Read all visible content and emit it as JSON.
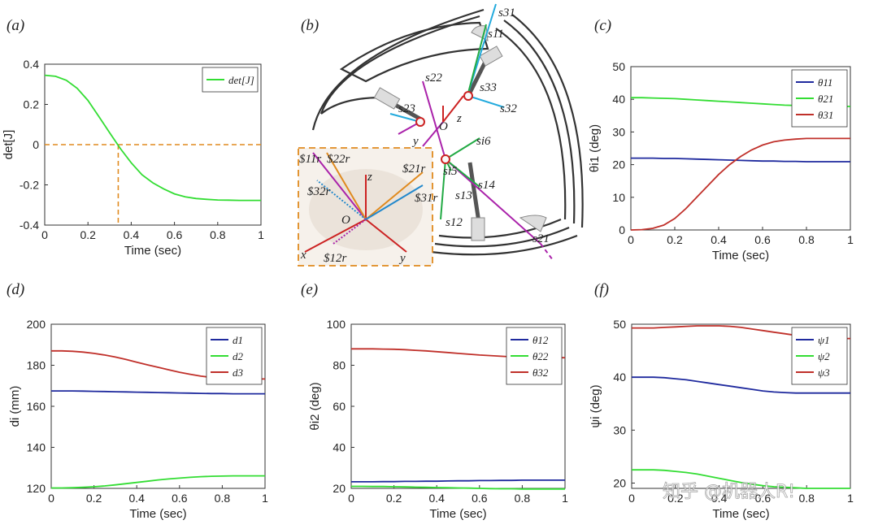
{
  "panel_labels": [
    "(a)",
    "(b)",
    "(c)",
    "(d)",
    "(e)",
    "(f)"
  ],
  "watermark": "知乎 @机器人R!",
  "diagram": {
    "labels": [
      "s31",
      "s11",
      "s22",
      "s33",
      "s32",
      "s23",
      "O",
      "z",
      "y",
      "si6",
      "si5",
      "s14",
      "s13",
      "s12",
      "s21"
    ],
    "inset_labels": [
      "$11r",
      "$22r",
      "$21r",
      "$31r",
      "$32r",
      "$12r",
      "z",
      "O",
      "x",
      "y"
    ]
  },
  "chart_data": [
    {
      "id": "a",
      "type": "line",
      "xlabel": "Time (sec)",
      "ylabel": "det[J]",
      "xlim": [
        0,
        1
      ],
      "ylim": [
        -0.4,
        0.4
      ],
      "xticks": [
        0,
        0.2,
        0.4,
        0.6,
        0.8,
        1
      ],
      "xtick_labels": [
        "0",
        "0.2",
        "0.4",
        "0.6",
        "0.8",
        "1"
      ],
      "yticks": [
        -0.4,
        -0.2,
        0,
        0.2,
        0.4
      ],
      "ytick_labels": [
        "-0.4",
        "-0.2",
        "0",
        "0.2",
        "0.4"
      ],
      "legend_position": "top-right",
      "x": [
        0,
        0.05,
        0.1,
        0.15,
        0.2,
        0.25,
        0.3,
        0.35,
        0.4,
        0.45,
        0.5,
        0.55,
        0.6,
        0.65,
        0.7,
        0.75,
        0.8,
        0.85,
        0.9,
        0.95,
        1
      ],
      "series": [
        {
          "name": "det[J]",
          "color": "#33dd33",
          "values": [
            0.345,
            0.34,
            0.32,
            0.28,
            0.22,
            0.14,
            0.06,
            -0.02,
            -0.09,
            -0.15,
            -0.19,
            -0.22,
            -0.245,
            -0.26,
            -0.268,
            -0.272,
            -0.275,
            -0.276,
            -0.277,
            -0.277,
            -0.277
          ]
        }
      ],
      "reference_lines": {
        "y0": 0,
        "x_cross": 0.34,
        "color": "#e08a1e"
      }
    },
    {
      "id": "c",
      "type": "line",
      "xlabel": "Time (sec)",
      "ylabel": "θi1 (deg)",
      "xlim": [
        0,
        1
      ],
      "ylim": [
        0,
        50
      ],
      "xticks": [
        0,
        0.2,
        0.4,
        0.6,
        0.8,
        1
      ],
      "xtick_labels": [
        "0",
        "0.2",
        "0.4",
        "0.6",
        "0.8",
        "1"
      ],
      "yticks": [
        0,
        10,
        20,
        30,
        40,
        50
      ],
      "ytick_labels": [
        "0",
        "10",
        "20",
        "30",
        "40",
        "50"
      ],
      "legend_position": "top-right",
      "x": [
        0,
        0.05,
        0.1,
        0.15,
        0.2,
        0.25,
        0.3,
        0.35,
        0.4,
        0.45,
        0.5,
        0.55,
        0.6,
        0.65,
        0.7,
        0.75,
        0.8,
        0.85,
        0.9,
        0.95,
        1
      ],
      "series": [
        {
          "name": "θ11",
          "color": "#1f2a9e",
          "values": [
            22,
            22,
            22,
            21.9,
            21.9,
            21.8,
            21.7,
            21.6,
            21.5,
            21.4,
            21.3,
            21.2,
            21.1,
            21.1,
            21,
            21,
            20.9,
            20.9,
            20.9,
            20.9,
            20.9
          ]
        },
        {
          "name": "θ21",
          "color": "#33dd33",
          "values": [
            40.5,
            40.5,
            40.4,
            40.3,
            40.2,
            40,
            39.8,
            39.6,
            39.4,
            39.2,
            39,
            38.8,
            38.6,
            38.4,
            38.2,
            38.1,
            38,
            37.9,
            37.8,
            37.8,
            37.8
          ]
        },
        {
          "name": "θ31",
          "color": "#c0302a",
          "values": [
            0,
            0.1,
            0.5,
            1.5,
            3.5,
            6.5,
            10,
            13.5,
            17,
            20,
            22.5,
            24.5,
            26,
            27,
            27.5,
            27.8,
            28,
            28,
            28,
            28,
            28
          ]
        }
      ]
    },
    {
      "id": "d",
      "type": "line",
      "xlabel": "Time (sec)",
      "ylabel": "di (mm)",
      "xlim": [
        0,
        1
      ],
      "ylim": [
        120,
        200
      ],
      "xticks": [
        0,
        0.2,
        0.4,
        0.6,
        0.8,
        1
      ],
      "xtick_labels": [
        "0",
        "0.2",
        "0.4",
        "0.6",
        "0.8",
        "1"
      ],
      "yticks": [
        120,
        140,
        160,
        180,
        200
      ],
      "ytick_labels": [
        "120",
        "140",
        "160",
        "180",
        "200"
      ],
      "legend_position": "top-right",
      "x": [
        0,
        0.05,
        0.1,
        0.15,
        0.2,
        0.25,
        0.3,
        0.35,
        0.4,
        0.45,
        0.5,
        0.55,
        0.6,
        0.65,
        0.7,
        0.75,
        0.8,
        0.85,
        0.9,
        0.95,
        1
      ],
      "series": [
        {
          "name": "d1",
          "color": "#1f2a9e",
          "values": [
            167.5,
            167.5,
            167.5,
            167.4,
            167.3,
            167.2,
            167.1,
            167,
            166.9,
            166.8,
            166.7,
            166.6,
            166.5,
            166.4,
            166.3,
            166.2,
            166.2,
            166.1,
            166.1,
            166.1,
            166.1
          ]
        },
        {
          "name": "d2",
          "color": "#33dd33",
          "values": [
            120.2,
            120.2,
            120.3,
            120.5,
            120.8,
            121.2,
            121.7,
            122.3,
            122.9,
            123.5,
            124.1,
            124.6,
            125,
            125.4,
            125.7,
            125.9,
            126,
            126.1,
            126.1,
            126.1,
            126.1
          ]
        },
        {
          "name": "d3",
          "color": "#c0302a",
          "values": [
            187,
            187,
            186.8,
            186.4,
            185.8,
            185,
            184,
            182.8,
            181.5,
            180.2,
            179,
            177.8,
            176.6,
            175.6,
            174.7,
            174.1,
            173.7,
            173.4,
            173.3,
            173.3,
            173.3
          ]
        }
      ]
    },
    {
      "id": "e",
      "type": "line",
      "xlabel": "Time (sec)",
      "ylabel": "θi2 (deg)",
      "xlim": [
        0,
        1
      ],
      "ylim": [
        20,
        100
      ],
      "xticks": [
        0,
        0.2,
        0.4,
        0.6,
        0.8,
        1
      ],
      "xtick_labels": [
        "0",
        "0.2",
        "0.4",
        "0.6",
        "0.8",
        "1"
      ],
      "yticks": [
        20,
        40,
        60,
        80,
        100
      ],
      "ytick_labels": [
        "20",
        "40",
        "60",
        "80",
        "100"
      ],
      "legend_position": "top-right",
      "x": [
        0,
        0.05,
        0.1,
        0.15,
        0.2,
        0.25,
        0.3,
        0.35,
        0.4,
        0.45,
        0.5,
        0.55,
        0.6,
        0.65,
        0.7,
        0.75,
        0.8,
        0.85,
        0.9,
        0.95,
        1
      ],
      "series": [
        {
          "name": "θ12",
          "color": "#1f2a9e",
          "values": [
            23.2,
            23.2,
            23.2,
            23.3,
            23.3,
            23.4,
            23.4,
            23.5,
            23.5,
            23.6,
            23.7,
            23.7,
            23.8,
            23.8,
            23.9,
            23.9,
            24,
            24,
            24,
            24,
            24
          ]
        },
        {
          "name": "θ22",
          "color": "#33dd33",
          "values": [
            21,
            21,
            20.9,
            20.9,
            20.8,
            20.7,
            20.6,
            20.5,
            20.4,
            20.3,
            20.2,
            20.1,
            20,
            19.9,
            19.8,
            19.8,
            19.7,
            19.7,
            19.7,
            19.7,
            19.7
          ]
        },
        {
          "name": "θ32",
          "color": "#c0302a",
          "values": [
            88,
            88,
            88,
            87.9,
            87.8,
            87.6,
            87.3,
            87,
            86.6,
            86.2,
            85.8,
            85.4,
            85,
            84.7,
            84.4,
            84.1,
            83.9,
            83.8,
            83.7,
            83.7,
            83.7
          ]
        }
      ]
    },
    {
      "id": "f",
      "type": "line",
      "xlabel": "Time (sec)",
      "ylabel": "ψi (deg)",
      "xlim": [
        0,
        1
      ],
      "ylim": [
        19,
        50
      ],
      "xticks": [
        0,
        0.2,
        0.4,
        0.6,
        0.8,
        1
      ],
      "xtick_labels": [
        "0",
        "0.2",
        "0.4",
        "0.6",
        "0.8",
        "1"
      ],
      "yticks": [
        20,
        30,
        40,
        50
      ],
      "ytick_labels": [
        "20",
        "30",
        "40",
        "50"
      ],
      "legend_position": "top-right",
      "x": [
        0,
        0.05,
        0.1,
        0.15,
        0.2,
        0.25,
        0.3,
        0.35,
        0.4,
        0.45,
        0.5,
        0.55,
        0.6,
        0.65,
        0.7,
        0.75,
        0.8,
        0.85,
        0.9,
        0.95,
        1
      ],
      "series": [
        {
          "name": "ψ1",
          "color": "#1f2a9e",
          "values": [
            40,
            40,
            40,
            39.9,
            39.7,
            39.5,
            39.2,
            38.9,
            38.6,
            38.3,
            38,
            37.7,
            37.4,
            37.2,
            37.1,
            37,
            37,
            37,
            37,
            37,
            37
          ]
        },
        {
          "name": "ψ2",
          "color": "#33dd33",
          "values": [
            22.5,
            22.5,
            22.5,
            22.4,
            22.2,
            22,
            21.7,
            21.3,
            20.9,
            20.5,
            20.1,
            19.8,
            19.5,
            19.3,
            19.2,
            19.1,
            19,
            19,
            19,
            19,
            19
          ]
        },
        {
          "name": "ψ3",
          "color": "#c0302a",
          "values": [
            49.3,
            49.3,
            49.3,
            49.4,
            49.5,
            49.6,
            49.7,
            49.7,
            49.7,
            49.6,
            49.4,
            49.1,
            48.8,
            48.5,
            48.2,
            47.9,
            47.6,
            47.4,
            47.3,
            47.3,
            47.3
          ]
        }
      ]
    }
  ]
}
